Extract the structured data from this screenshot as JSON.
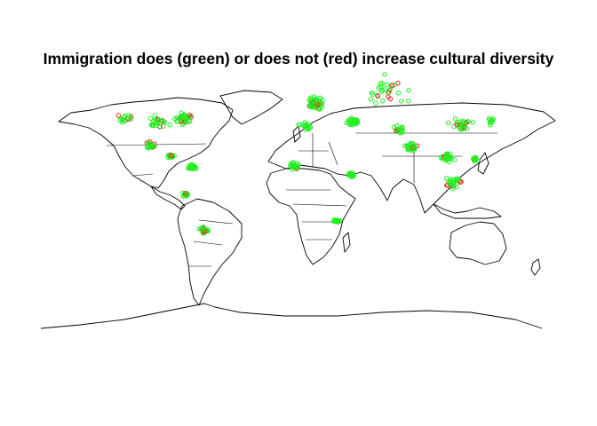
{
  "title": "Immigration does (green) or does not (red) increase cultural diversity",
  "chart_data": {
    "type": "scatter",
    "title": "Immigration does (green) or does not (red) increase cultural diversity",
    "xlabel": "",
    "ylabel": "",
    "projection": "equirectangular",
    "xlim": [
      -180,
      180
    ],
    "ylim": [
      -90,
      90
    ],
    "grid": false,
    "colors": {
      "yes": "#22ee22",
      "no": "#ee2222"
    },
    "clusters": [
      {
        "region": "USA East",
        "lon": -78,
        "lat": 38,
        "spread": 8,
        "count": 40,
        "share_red": 0.15
      },
      {
        "region": "USA Central",
        "lon": -95,
        "lat": 36,
        "spread": 9,
        "count": 25,
        "share_red": 0.15
      },
      {
        "region": "USA West",
        "lon": -118,
        "lat": 38,
        "spread": 6,
        "count": 18,
        "share_red": 0.15
      },
      {
        "region": "Mexico",
        "lon": -101,
        "lat": 21,
        "spread": 5,
        "count": 30,
        "share_red": 0.1
      },
      {
        "region": "Central America",
        "lon": -87,
        "lat": 14,
        "spread": 3,
        "count": 15,
        "share_red": 0.1
      },
      {
        "region": "Colombia / Venezuela",
        "lon": -72,
        "lat": 7,
        "spread": 4,
        "count": 25,
        "share_red": 0.05
      },
      {
        "region": "Peru",
        "lon": -77,
        "lat": -10,
        "spread": 3,
        "count": 12,
        "share_red": 0.05
      },
      {
        "region": "Argentina / Chile",
        "lon": -64,
        "lat": -33,
        "spread": 5,
        "count": 35,
        "share_red": 0.05
      },
      {
        "region": "Europe",
        "lon": 12,
        "lat": 48,
        "spread": 8,
        "count": 60,
        "share_red": 0.1
      },
      {
        "region": "Turkey / Middle East",
        "lon": 38,
        "lat": 36,
        "spread": 6,
        "count": 25,
        "share_red": 0.1
      },
      {
        "region": "Russia",
        "lon": 60,
        "lat": 55,
        "spread": 25,
        "count": 30,
        "share_red": 0.2
      },
      {
        "region": "North Africa",
        "lon": 5,
        "lat": 33,
        "spread": 6,
        "count": 20,
        "share_red": 0.05
      },
      {
        "region": "West Africa",
        "lon": -2,
        "lat": 8,
        "spread": 5,
        "count": 22,
        "share_red": 0.05
      },
      {
        "region": "East Africa",
        "lon": 37,
        "lat": 2,
        "spread": 4,
        "count": 20,
        "share_red": 0.05
      },
      {
        "region": "Southern Africa",
        "lon": 27,
        "lat": -27,
        "spread": 3,
        "count": 15,
        "share_red": 0.05
      },
      {
        "region": "Pakistan / Afghanistan",
        "lon": 70,
        "lat": 31,
        "spread": 5,
        "count": 20,
        "share_red": 0.1
      },
      {
        "region": "India",
        "lon": 78,
        "lat": 20,
        "spread": 6,
        "count": 30,
        "share_red": 0.1
      },
      {
        "region": "China",
        "lon": 112,
        "lat": 34,
        "spread": 9,
        "count": 30,
        "share_red": 0.1
      },
      {
        "region": "Southeast Asia",
        "lon": 103,
        "lat": 13,
        "spread": 6,
        "count": 30,
        "share_red": 0.1
      },
      {
        "region": "Philippines",
        "lon": 122,
        "lat": 12,
        "spread": 3,
        "count": 12,
        "share_red": 0.1
      },
      {
        "region": "Indonesia / Malaysia",
        "lon": 108,
        "lat": -3,
        "spread": 8,
        "count": 30,
        "share_red": 0.1
      },
      {
        "region": "Japan / Korea",
        "lon": 133,
        "lat": 36,
        "spread": 5,
        "count": 10,
        "share_red": 0.1
      }
    ]
  }
}
